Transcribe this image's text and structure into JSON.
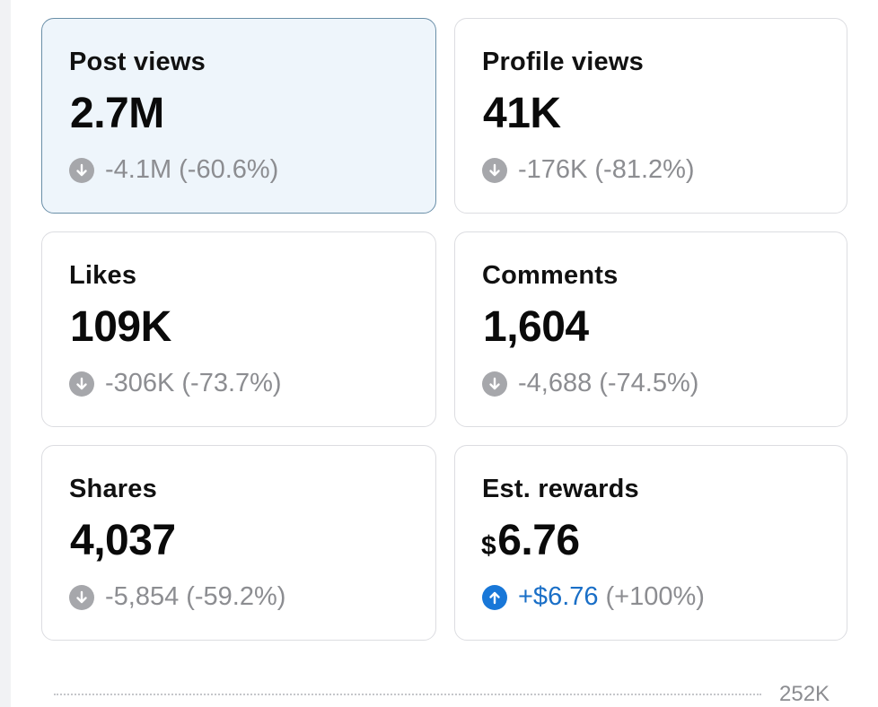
{
  "cards": [
    {
      "title": "Post views",
      "value": "2.7M",
      "currency": "",
      "change_abs": "-4.1M",
      "change_pct": "(-60.6%)",
      "direction": "down",
      "selected": true
    },
    {
      "title": "Profile views",
      "value": "41K",
      "currency": "",
      "change_abs": "-176K",
      "change_pct": "(-81.2%)",
      "direction": "down",
      "selected": false
    },
    {
      "title": "Likes",
      "value": "109K",
      "currency": "",
      "change_abs": "-306K",
      "change_pct": "(-73.7%)",
      "direction": "down",
      "selected": false
    },
    {
      "title": "Comments",
      "value": "1,604",
      "currency": "",
      "change_abs": "-4,688",
      "change_pct": "(-74.5%)",
      "direction": "down",
      "selected": false
    },
    {
      "title": "Shares",
      "value": "4,037",
      "currency": "",
      "change_abs": "-5,854",
      "change_pct": "(-59.2%)",
      "direction": "down",
      "selected": false
    },
    {
      "title": "Est. rewards",
      "value": "6.76",
      "currency": "$",
      "change_abs": "+$6.76",
      "change_pct": "(+100%)",
      "direction": "up",
      "selected": false
    }
  ],
  "chart_axis": {
    "top_label": "252K"
  },
  "colors": {
    "selected_bg": "#eef5fb",
    "selected_border": "#6a8fa8",
    "down_icon": "#a6a7ab",
    "up_icon": "#1877d8",
    "positive_text": "#1a6fc7",
    "muted_text": "#8c8d91"
  },
  "icons": {
    "down": "arrow-down-circle-icon",
    "up": "arrow-up-circle-icon"
  }
}
